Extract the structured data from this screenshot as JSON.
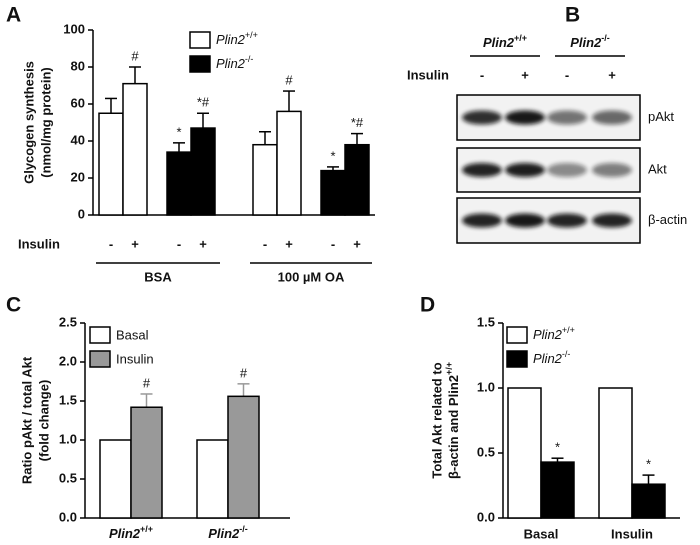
{
  "chart_data": [
    {
      "panel": "A",
      "type": "bar",
      "ylabel": [
        "Glycogen synthesis",
        "(nmol/mg protein)"
      ],
      "ylim": [
        0,
        100
      ],
      "yticks": [
        0,
        20,
        40,
        60,
        80,
        100
      ],
      "categories": [
        "-",
        "+",
        "-",
        "+",
        "-",
        "+",
        "-",
        "+"
      ],
      "groups": [
        "BSA",
        "100 µM OA"
      ],
      "row_label": "Insulin",
      "series": [
        {
          "name": "Plin2+/+",
          "color": "#ffffff",
          "values": [
            55,
            71,
            null,
            null,
            38,
            56,
            null,
            null
          ],
          "errors": [
            8,
            9,
            null,
            null,
            7,
            11,
            null,
            null
          ],
          "annotations": [
            null,
            "#",
            null,
            null,
            null,
            "#",
            null,
            null
          ]
        },
        {
          "name": "Plin2-/-",
          "color": "#000000",
          "values": [
            null,
            null,
            34,
            47,
            null,
            null,
            24,
            38
          ],
          "errors": [
            null,
            null,
            5,
            8,
            null,
            null,
            2,
            6
          ],
          "annotations": [
            null,
            null,
            "*",
            "*#",
            null,
            null,
            "*",
            "*#"
          ]
        }
      ]
    },
    {
      "panel": "C",
      "type": "bar",
      "ylabel": [
        "Ratio pAkt / total Akt",
        "(fold change)"
      ],
      "ylim": [
        0,
        2.5
      ],
      "yticks": [
        {
          "value": 0,
          "label": "0.0"
        },
        {
          "value": 0.5,
          "label": "0.5"
        },
        {
          "value": 1,
          "label": "1.0"
        },
        {
          "value": 1.5,
          "label": "1.5"
        },
        {
          "value": 2,
          "label": "2.0"
        },
        {
          "value": 2.5,
          "label": "2.5"
        }
      ],
      "categories": [
        "Plin2+/+",
        "Plin2-/-"
      ],
      "series": [
        {
          "name": "Basal",
          "color": "#ffffff",
          "values": [
            1,
            1
          ]
        },
        {
          "name": "Insulin",
          "color": "#999999",
          "values": [
            1.42,
            1.56
          ],
          "errors": [
            0.17,
            0.16
          ],
          "annotations": [
            "#",
            "#"
          ]
        }
      ]
    },
    {
      "panel": "D",
      "type": "bar",
      "ylabel": [
        "Total Akt related to",
        "β-actin and Plin2+/+"
      ],
      "ylim": [
        0,
        1.5
      ],
      "yticks": [
        {
          "value": 0,
          "label": "0.0"
        },
        {
          "value": 0.5,
          "label": "0.5"
        },
        {
          "value": 1,
          "label": "1.0"
        },
        {
          "value": 1.5,
          "label": "1.5"
        }
      ],
      "categories": [
        "Basal",
        "Insulin"
      ],
      "series": [
        {
          "name": "Plin2+/+",
          "color": "#ffffff",
          "values": [
            1,
            1
          ]
        },
        {
          "name": "Plin2-/-",
          "color": "#000000",
          "values": [
            0.43,
            0.26
          ],
          "errors": [
            0.03,
            0.07
          ],
          "annotations": [
            "*",
            "*"
          ]
        }
      ]
    }
  ],
  "blot": {
    "panel": "B",
    "columns": [
      "Plin2+/+",
      "Plin2-/-"
    ],
    "row_label": "Insulin",
    "lanes": [
      "-",
      "+",
      "-",
      "+"
    ],
    "bands": [
      "pAkt",
      "Akt",
      "β-actin"
    ]
  }
}
